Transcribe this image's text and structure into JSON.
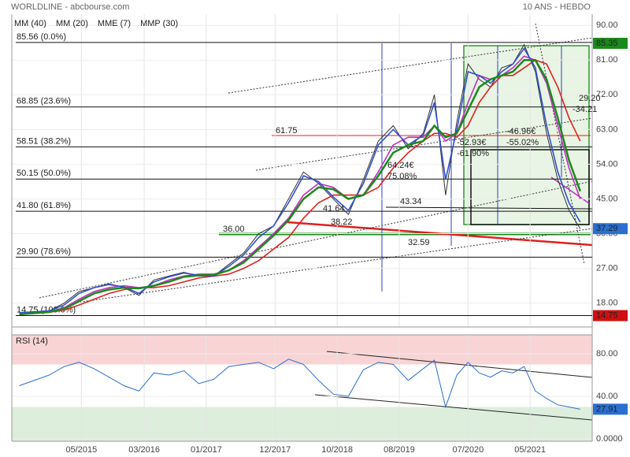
{
  "chart_data": [
    {
      "type": "line",
      "title": "WORLDLINE - abcbourse.com",
      "subtitle": "10 ANS - HEBDO",
      "x": [
        2014.5,
        2014.7,
        2014.9,
        2015.1,
        2015.3,
        2015.5,
        2015.7,
        2015.9,
        2016.1,
        2016.3,
        2016.5,
        2016.7,
        2016.9,
        2017.1,
        2017.3,
        2017.5,
        2017.7,
        2017.9,
        2018.1,
        2018.3,
        2018.5,
        2018.7,
        2018.9,
        2019.1,
        2019.3,
        2019.5,
        2019.7,
        2019.9,
        2020.05,
        2020.2,
        2020.35,
        2020.5,
        2020.65,
        2020.8,
        2020.95,
        2021.1,
        2021.25,
        2021.4,
        2021.55,
        2021.7,
        2021.85,
        2022.0
      ],
      "values": [
        15.5,
        15.8,
        16,
        18,
        21,
        22,
        23,
        22,
        20,
        24,
        25,
        26,
        25,
        25,
        28,
        31,
        36,
        38,
        45,
        52,
        49,
        45,
        41,
        50,
        60,
        64,
        58,
        62,
        72,
        46,
        65,
        80,
        76,
        74,
        79,
        80,
        85,
        78,
        62,
        50,
        42,
        37.29
      ],
      "color": "#333333",
      "series": [
        {
          "name": "MM (40)",
          "color": "#e02020",
          "values": [
            15,
            15.3,
            15.6,
            16.2,
            17.5,
            19,
            20.5,
            21.5,
            22,
            22,
            22.5,
            23.5,
            24.5,
            25,
            25.5,
            27,
            29,
            32,
            35,
            40,
            44,
            46,
            46,
            46,
            48,
            53,
            57,
            60,
            62,
            62,
            61,
            64,
            70,
            74,
            77,
            77,
            79,
            81,
            80,
            74,
            66,
            60
          ]
        },
        {
          "name": "MM (20)",
          "color": "#c030c0",
          "values": [
            15.2,
            15.5,
            15.8,
            16.8,
            19,
            21,
            22,
            22.5,
            22,
            22.5,
            24,
            25,
            25.5,
            25.5,
            26.5,
            29,
            32.5,
            36,
            40,
            46,
            49,
            48,
            45,
            46,
            52,
            59,
            61,
            61,
            64,
            60,
            62,
            70,
            77,
            76,
            77,
            79,
            82,
            81,
            75,
            64,
            53,
            45
          ]
        },
        {
          "name": "MME (7)",
          "color": "#3050d0",
          "values": [
            15.5,
            15.7,
            16,
            17.5,
            20.5,
            22,
            22.8,
            22.2,
            20.5,
            23.5,
            24.8,
            25.8,
            25.2,
            25,
            27.5,
            30.5,
            35,
            38,
            44,
            51,
            49.5,
            45.5,
            42,
            49,
            59,
            63,
            59,
            61.5,
            70,
            50,
            63,
            78,
            77,
            75,
            78,
            80,
            84,
            79,
            64,
            52,
            44,
            39
          ]
        },
        {
          "name": "MMP (30)",
          "color": "#1a8a1a",
          "values": [
            15.1,
            15.4,
            15.7,
            16.5,
            18.5,
            20.5,
            21.5,
            22,
            21.8,
            22.5,
            23.5,
            24.8,
            25.2,
            25.3,
            26.5,
            28.5,
            32,
            35.5,
            39.5,
            45,
            48,
            47.5,
            45,
            46,
            51,
            57,
            59,
            60,
            64,
            61,
            62,
            68,
            74,
            76,
            77,
            78,
            81,
            81,
            76,
            66,
            55,
            47
          ]
        }
      ],
      "xlim": [
        2014.4,
        2022.16
      ],
      "xticks": [
        {
          "value": 2015.33,
          "label": "05/2015"
        },
        {
          "value": 2016.17,
          "label": "03/2016"
        },
        {
          "value": 2017.0,
          "label": "01/2017"
        },
        {
          "value": 2017.92,
          "label": "12/2017"
        },
        {
          "value": 2018.75,
          "label": "10/2018"
        },
        {
          "value": 2019.58,
          "label": "08/2019"
        },
        {
          "value": 2020.5,
          "label": "07/2020"
        },
        {
          "value": 2021.33,
          "label": "05/2021"
        }
      ],
      "ylim": [
        11.8,
        92.9
      ],
      "yticks": [
        {
          "value": 18,
          "label": "18.00"
        },
        {
          "value": 27,
          "label": "27.00"
        },
        {
          "value": 36,
          "label": "36.00"
        },
        {
          "value": 45,
          "label": "45.00"
        },
        {
          "value": 54,
          "label": "54.00"
        },
        {
          "value": 63,
          "label": "63.00"
        },
        {
          "value": 72,
          "label": "72.00"
        },
        {
          "value": 81,
          "label": "81.00"
        },
        {
          "value": 90,
          "label": "90.00"
        }
      ],
      "fib_levels": [
        {
          "value": 85.56,
          "label": "85.56 (0.0%)"
        },
        {
          "value": 68.85,
          "label": "68.85 (23.6%)"
        },
        {
          "value": 58.51,
          "label": "58.51 (38.2%)"
        },
        {
          "value": 50.15,
          "label": "50.15 (50.0%)"
        },
        {
          "value": 41.8,
          "label": "41.80 (61.8%)"
        },
        {
          "value": 29.9,
          "label": "29.90 (78.6%)"
        },
        {
          "value": 14.75,
          "label": "14.75 (100.0%)"
        }
      ],
      "price_tags": [
        {
          "value": 85.35,
          "color": "#1a8a1a"
        },
        {
          "value": 37.29,
          "color": "#2a6fd0"
        },
        {
          "value": 14.75,
          "color": "#d01010"
        }
      ],
      "annotations": [
        "61.75",
        "36.00",
        "43.34",
        "41.64",
        "38.22",
        "32.59",
        "64.24€",
        "75.08%",
        "-52.93€",
        "-61.90%",
        "-46.96€",
        "-55.02%",
        "29.20",
        "-34.21"
      ],
      "grid": true
    },
    {
      "type": "line",
      "title": "RSI (14)",
      "x": [
        2014.5,
        2014.7,
        2014.9,
        2015.1,
        2015.3,
        2015.5,
        2015.7,
        2015.9,
        2016.1,
        2016.3,
        2016.5,
        2016.7,
        2016.9,
        2017.1,
        2017.3,
        2017.5,
        2017.7,
        2017.9,
        2018.1,
        2018.3,
        2018.5,
        2018.7,
        2018.9,
        2019.1,
        2019.3,
        2019.5,
        2019.7,
        2019.9,
        2020.05,
        2020.2,
        2020.35,
        2020.5,
        2020.65,
        2020.8,
        2020.95,
        2021.1,
        2021.25,
        2021.4,
        2021.55,
        2021.7,
        2021.85,
        2022.0
      ],
      "values": [
        50,
        55,
        60,
        68,
        72,
        66,
        58,
        50,
        45,
        62,
        60,
        64,
        52,
        56,
        68,
        70,
        72,
        66,
        75,
        70,
        55,
        42,
        40,
        65,
        72,
        70,
        55,
        66,
        74,
        30,
        60,
        72,
        62,
        58,
        64,
        62,
        68,
        45,
        38,
        32,
        30,
        27.91
      ],
      "color": "#2a6fd0",
      "ylim": [
        -2.2,
        97.8
      ],
      "yticks": [
        {
          "value": 0,
          "label": "0.0000"
        },
        {
          "value": 40,
          "label": "40.00"
        },
        {
          "value": 80,
          "label": "80.00"
        }
      ],
      "zones": [
        70,
        30
      ],
      "price_tags": [
        {
          "value": 27.91,
          "color": "#2a6fd0"
        }
      ]
    }
  ]
}
